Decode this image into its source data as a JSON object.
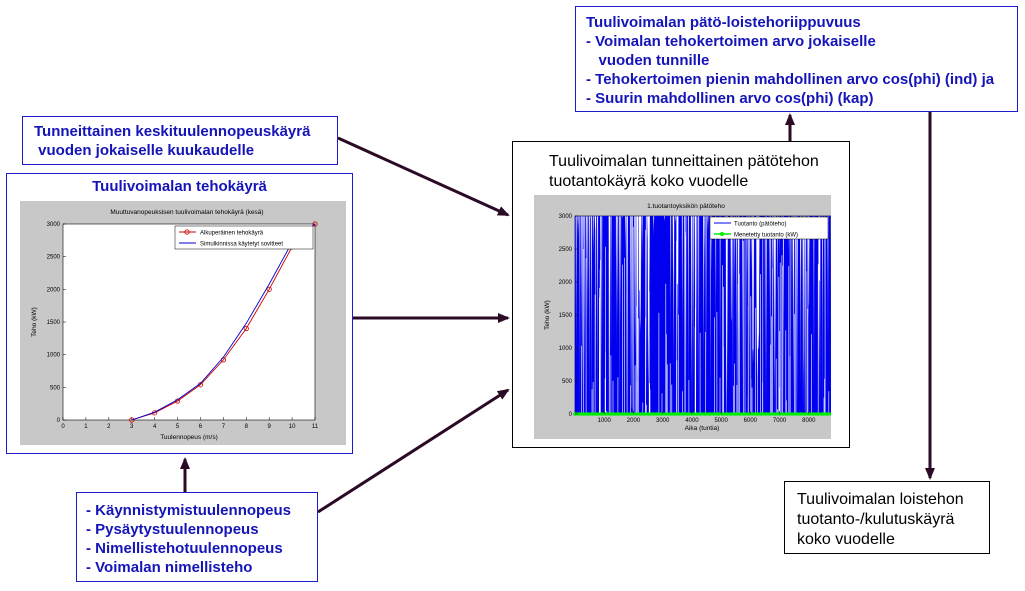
{
  "boxes": {
    "top_right": {
      "lines": [
        "Tuulivoimalan pätö-loistehoriippuvuus",
        "- Voimalan tehokertoimen arvo jokaiselle",
        "   vuoden tunnille",
        "- Tehokertoimen pienin mahdollinen arvo cos(phi) (ind) ja",
        "- Suurin mahdollinen arvo cos(phi) (kap)"
      ]
    },
    "wind_speed": {
      "lines": [
        "Tunneittainen keskituulennopeuskäyrä",
        " vuoden jokaiselle kuukaudelle"
      ]
    },
    "power_curve_box": {
      "title": "Tuulivoimalan tehokäyrä"
    },
    "parameters": {
      "lines": [
        "- Käynnistymistuulennopeus",
        "- Pysäytystuulennopeus",
        "- Nimellistehotuulennopeus",
        "- Voimalan nimellisteho"
      ]
    },
    "center": {
      "lines": [
        "Tuulivoimalan tunneittainen pätötehon",
        "tuotantokäyrä koko vuodelle"
      ]
    },
    "bottom_right": {
      "lines": [
        "Tuulivoimalan loistehon",
        "tuotanto-/kulutuskäyrä",
        "koko vuodelle"
      ]
    }
  },
  "colors": {
    "blue_text": "#1414b8",
    "box_border_blue": "#1c1ccc",
    "arrow": "#2a0a24",
    "plot_panel": "#c8c8c8",
    "production_fill": "#0000ee",
    "lost_production": "#00ee00",
    "curve_original": "#cc0000",
    "curve_simulated": "#0000cc"
  },
  "chart_data": [
    {
      "type": "line",
      "title": "Muuttuvanopeuksisen tuulivoimalan tehokäyrä (kesä)",
      "xlabel": "Tuulennopeus (m/s)",
      "ylabel": "Teho (kW)",
      "xlim": [
        0,
        11
      ],
      "ylim": [
        0,
        3000
      ],
      "xticks": [
        "0",
        "1",
        "2",
        "3",
        "4",
        "5",
        "6",
        "7",
        "8",
        "9",
        "10",
        "11"
      ],
      "yticks": [
        "0",
        "500",
        "1000",
        "1500",
        "2000",
        "2500",
        "3000"
      ],
      "legend_position": "top-right",
      "series": [
        {
          "name": "Alkuperäinen tehokäyrä",
          "marker": "circle",
          "x": [
            3,
            4,
            5,
            6,
            7,
            8,
            9,
            10,
            11
          ],
          "y": [
            0,
            110,
            290,
            540,
            920,
            1400,
            2000,
            2650,
            3000
          ]
        },
        {
          "name": "Simulkinnissa käytetyt sovitteet",
          "marker": "none",
          "x": [
            3,
            4,
            5,
            6,
            7,
            8,
            9,
            10,
            11
          ],
          "y": [
            0,
            120,
            310,
            560,
            960,
            1480,
            2080,
            2720,
            3000
          ]
        }
      ]
    },
    {
      "type": "area",
      "title": "1.tuotantoyksikön pätöteho",
      "xlabel": "Aika (tuntia)",
      "ylabel": "Teho (kW)",
      "xlim": [
        0,
        8760
      ],
      "ylim": [
        0,
        3000
      ],
      "xticks": [
        "1000",
        "2000",
        "3000",
        "4000",
        "5000",
        "6000",
        "7000",
        "8000"
      ],
      "yticks": [
        "0",
        "500",
        "1000",
        "1500",
        "2000",
        "2500",
        "3000"
      ],
      "legend_position": "top-right",
      "series": [
        {
          "name": "Tuotanto (pätöteho)",
          "description_value": "hourly production between 0 and 3000 kW"
        },
        {
          "name": "Menetetty tuotanto (kW)",
          "values_constant": 0
        }
      ]
    }
  ]
}
